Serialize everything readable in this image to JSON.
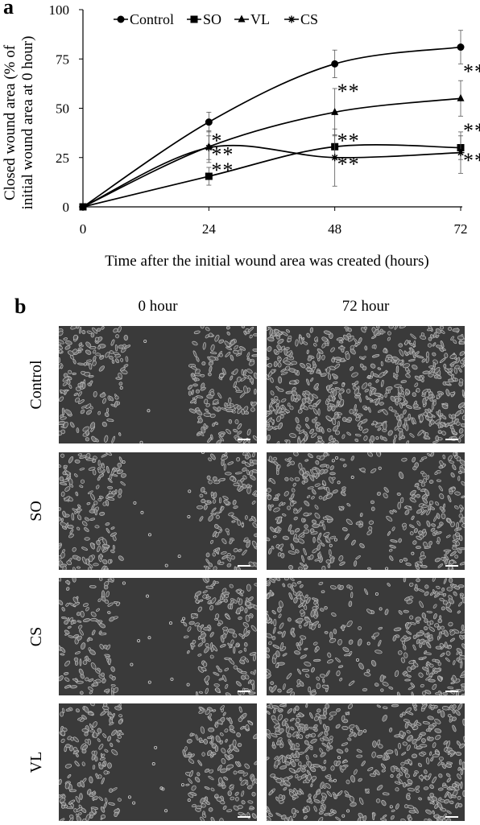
{
  "panel_a": {
    "label": "a",
    "chart_data": {
      "type": "line",
      "x": [
        0,
        24,
        48,
        72
      ],
      "xlim": [
        0,
        72
      ],
      "ylim": [
        0,
        100
      ],
      "xticks": [
        "0",
        "24",
        "48",
        "72"
      ],
      "yticks": [
        "0",
        "25",
        "50",
        "75",
        "100"
      ],
      "xlabel": "Time after the initial wound area was created (hours)",
      "ylabel_line1": "Closed wound area (% of",
      "ylabel_line2": "initial wound area at 0 hour)",
      "legend_position": "top",
      "grid": false,
      "series": [
        {
          "name": "Control",
          "marker": "circle",
          "values": [
            0,
            43,
            72.5,
            81
          ],
          "errors": [
            0,
            5,
            7,
            8.5
          ]
        },
        {
          "name": "SO",
          "marker": "square",
          "values": [
            0,
            15.5,
            30.5,
            30
          ],
          "errors": [
            0,
            4.5,
            6,
            6
          ]
        },
        {
          "name": "VL",
          "marker": "triangle",
          "values": [
            0,
            30.5,
            48,
            55
          ],
          "errors": [
            0,
            8,
            12,
            9
          ]
        },
        {
          "name": "CS",
          "marker": "asterisk",
          "values": [
            0,
            30,
            25,
            27.5
          ],
          "errors": [
            0,
            6,
            14.5,
            10.5
          ]
        }
      ],
      "annotations": [
        {
          "text": "*",
          "x": 24,
          "y": 35
        },
        {
          "text": "**",
          "x": 24,
          "y": 28
        },
        {
          "text": "**",
          "x": 24,
          "y": 20
        },
        {
          "text": "**",
          "x": 48,
          "y": 60
        },
        {
          "text": "**",
          "x": 48,
          "y": 35
        },
        {
          "text": "**",
          "x": 48,
          "y": 23
        },
        {
          "text": "**",
          "x": 72,
          "y": 70
        },
        {
          "text": "**",
          "x": 72,
          "y": 40
        },
        {
          "text": "**",
          "x": 72,
          "y": 25
        }
      ]
    }
  },
  "panel_b": {
    "label": "b",
    "columns": [
      "0 hour",
      "72 hour"
    ],
    "rows": [
      "Control",
      "SO",
      "CS",
      "VL"
    ]
  },
  "colors": {
    "line": "#000000",
    "micro_background": "#3a3a3a",
    "micro_cells": "#bdbdbd"
  }
}
